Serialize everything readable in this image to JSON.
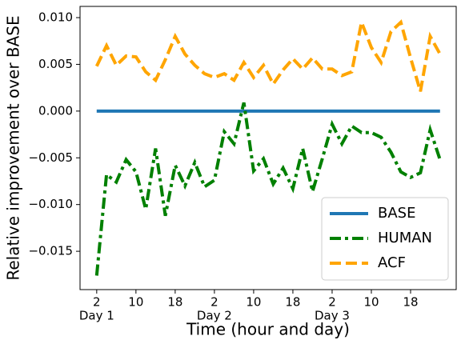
{
  "chart_data": {
    "type": "line",
    "xlabel": "Time (hour and day)",
    "ylabel": "Relative improvement over BASE",
    "x": [
      2,
      4,
      6,
      8,
      10,
      12,
      14,
      16,
      18,
      20,
      22,
      24,
      26,
      28,
      30,
      32,
      34,
      36,
      38,
      40,
      42,
      44,
      46,
      48,
      50,
      52,
      54,
      56,
      58,
      60,
      62,
      64,
      66,
      68,
      70,
      72
    ],
    "series": [
      {
        "name": "BASE",
        "color": "#1f77b4",
        "linestyle": "solid",
        "values": [
          0,
          0,
          0,
          0,
          0,
          0,
          0,
          0,
          0,
          0,
          0,
          0,
          0,
          0,
          0,
          0,
          0,
          0,
          0,
          0,
          0,
          0,
          0,
          0,
          0,
          0,
          0,
          0,
          0,
          0,
          0,
          0,
          0,
          0,
          0,
          0
        ]
      },
      {
        "name": "HUMAN",
        "color": "#008000",
        "linestyle": "dashdot",
        "values": [
          -0.0176,
          -0.0068,
          -0.0076,
          -0.0052,
          -0.0065,
          -0.0105,
          -0.004,
          -0.0112,
          -0.0058,
          -0.008,
          -0.0055,
          -0.0081,
          -0.0074,
          -0.0022,
          -0.0035,
          0.0009,
          -0.0064,
          -0.0051,
          -0.0078,
          -0.0061,
          -0.0083,
          -0.004,
          -0.0086,
          -0.0051,
          -0.0014,
          -0.0035,
          -0.0016,
          -0.0023,
          -0.0023,
          -0.0028,
          -0.0044,
          -0.0065,
          -0.0071,
          -0.0066,
          -0.002,
          -0.0052
        ]
      },
      {
        "name": "ACF",
        "color": "#ffa500",
        "linestyle": "dashed",
        "values": [
          0.0048,
          0.007,
          0.0049,
          0.0059,
          0.0058,
          0.0042,
          0.0033,
          0.0055,
          0.008,
          0.0061,
          0.0049,
          0.004,
          0.0036,
          0.004,
          0.0033,
          0.0052,
          0.0036,
          0.0049,
          0.0029,
          0.0044,
          0.0056,
          0.0045,
          0.0057,
          0.0045,
          0.0045,
          0.0038,
          0.0042,
          0.0095,
          0.0068,
          0.0052,
          0.0085,
          0.0095,
          0.0057,
          0.0021,
          0.008,
          0.0061
        ]
      }
    ],
    "xlim": [
      -1.4,
      75.3
    ],
    "ylim": [
      -0.0191,
      0.0112
    ],
    "xticks": [
      2,
      10,
      18,
      26,
      34,
      42,
      50,
      58,
      66
    ],
    "xtick_labels": [
      "2",
      "10",
      "18",
      "2",
      "10",
      "18",
      "2",
      "10",
      "18"
    ],
    "day_labels": [
      "Day 1",
      "Day 2",
      "Day 3"
    ],
    "yticks": [
      {
        "value": 0.01,
        "label": "0.010"
      },
      {
        "value": 0.005,
        "label": "0.005"
      },
      {
        "value": 0,
        "label": "0.000"
      },
      {
        "value": -0.005,
        "label": "−0.005"
      },
      {
        "value": -0.01,
        "label": "−0.010"
      },
      {
        "value": -0.015,
        "label": "−0.015"
      }
    ],
    "legend": "lower right"
  }
}
